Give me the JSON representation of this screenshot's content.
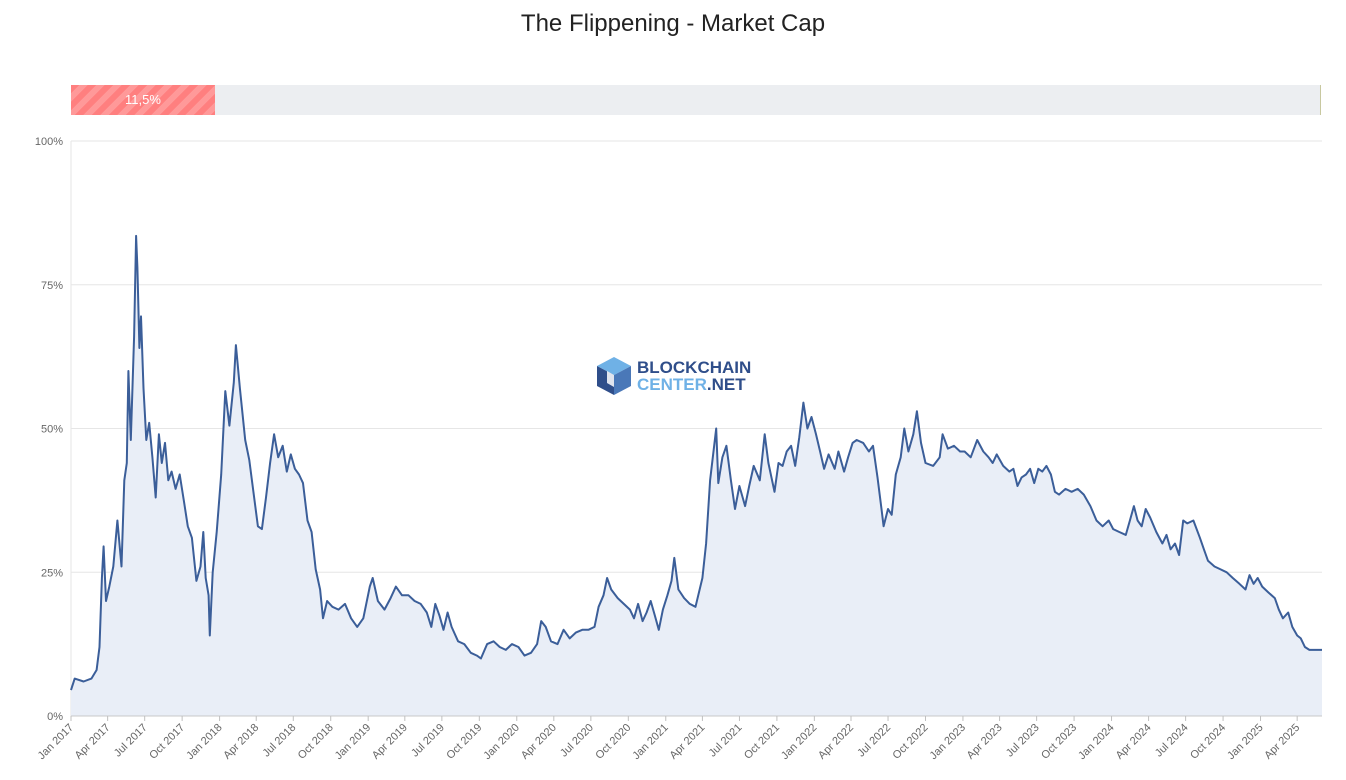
{
  "title": "The Flippening - Market Cap",
  "progress": {
    "value": 0.115,
    "label": "11,5%"
  },
  "watermark": {
    "line1": "BLOCKCHAIN",
    "line2a": "CENTER",
    "line2b": ".NET"
  },
  "colors": {
    "line": "#3b5e99",
    "area": "#e9eef7",
    "grid": "#e6e6e6",
    "bar": "#ff7f7f",
    "track": "#eceef1",
    "wm_dark": "#2f4e8a",
    "wm_light": "#6fb1e6"
  },
  "chart_data": {
    "type": "area",
    "title": "The Flippening - Market Cap",
    "xlabel": "",
    "ylabel": "",
    "ylim": [
      0,
      100
    ],
    "xlim": [
      "2017-01-01",
      "2025-06-01"
    ],
    "grid": true,
    "yticks": [
      "0%",
      "25%",
      "50%",
      "75%",
      "100%"
    ],
    "xticks": [
      "Jan 2017",
      "Apr 2017",
      "Jul 2017",
      "Oct 2017",
      "Jan 2018",
      "Apr 2018",
      "Jul 2018",
      "Oct 2018",
      "Jan 2019",
      "Apr 2019",
      "Jul 2019",
      "Oct 2019",
      "Jan 2020",
      "Apr 2020",
      "Jul 2020",
      "Oct 2020",
      "Jan 2021",
      "Apr 2021",
      "Jul 2021",
      "Oct 2021",
      "Jan 2022",
      "Apr 2022",
      "Jul 2022",
      "Oct 2022",
      "Jan 2023",
      "Apr 2023",
      "Jul 2023",
      "Oct 2023",
      "Jan 2024",
      "Apr 2024",
      "Jul 2024",
      "Oct 2024",
      "Jan 2025",
      "Apr 2025"
    ],
    "series": [
      {
        "points": [
          [
            "2017-01-01",
            4.5
          ],
          [
            "2017-01-10",
            6.5
          ],
          [
            "2017-02-01",
            6.0
          ],
          [
            "2017-02-20",
            6.5
          ],
          [
            "2017-03-05",
            8.0
          ],
          [
            "2017-03-12",
            12.0
          ],
          [
            "2017-03-18",
            24.0
          ],
          [
            "2017-03-22",
            29.5
          ],
          [
            "2017-03-28",
            20.0
          ],
          [
            "2017-04-05",
            22.5
          ],
          [
            "2017-04-15",
            26.0
          ],
          [
            "2017-04-25",
            34.0
          ],
          [
            "2017-05-05",
            26.0
          ],
          [
            "2017-05-12",
            41.0
          ],
          [
            "2017-05-18",
            44.0
          ],
          [
            "2017-05-22",
            60.0
          ],
          [
            "2017-05-28",
            48.0
          ],
          [
            "2017-06-05",
            66.0
          ],
          [
            "2017-06-10",
            83.5
          ],
          [
            "2017-06-13",
            78.0
          ],
          [
            "2017-06-18",
            64.0
          ],
          [
            "2017-06-22",
            69.5
          ],
          [
            "2017-06-28",
            57.0
          ],
          [
            "2017-07-05",
            48.0
          ],
          [
            "2017-07-12",
            51.0
          ],
          [
            "2017-07-20",
            45.0
          ],
          [
            "2017-07-28",
            38.0
          ],
          [
            "2017-08-05",
            49.0
          ],
          [
            "2017-08-12",
            44.0
          ],
          [
            "2017-08-20",
            47.5
          ],
          [
            "2017-08-28",
            41.0
          ],
          [
            "2017-09-05",
            42.5
          ],
          [
            "2017-09-15",
            39.5
          ],
          [
            "2017-09-25",
            42.0
          ],
          [
            "2017-10-05",
            37.5
          ],
          [
            "2017-10-15",
            33.0
          ],
          [
            "2017-10-25",
            31.0
          ],
          [
            "2017-11-05",
            23.5
          ],
          [
            "2017-11-15",
            26.0
          ],
          [
            "2017-11-22",
            32.0
          ],
          [
            "2017-11-28",
            24.0
          ],
          [
            "2017-12-05",
            21.0
          ],
          [
            "2017-12-08",
            14.0
          ],
          [
            "2017-12-15",
            25.0
          ],
          [
            "2017-12-25",
            32.0
          ],
          [
            "2018-01-05",
            42.0
          ],
          [
            "2018-01-15",
            56.5
          ],
          [
            "2018-01-25",
            50.5
          ],
          [
            "2018-02-05",
            58.0
          ],
          [
            "2018-02-10",
            64.5
          ],
          [
            "2018-02-20",
            57.0
          ],
          [
            "2018-03-05",
            48.0
          ],
          [
            "2018-03-15",
            44.5
          ],
          [
            "2018-03-25",
            39.0
          ],
          [
            "2018-04-05",
            33.0
          ],
          [
            "2018-04-15",
            32.5
          ],
          [
            "2018-04-25",
            38.0
          ],
          [
            "2018-05-05",
            44.0
          ],
          [
            "2018-05-15",
            49.0
          ],
          [
            "2018-05-25",
            45.0
          ],
          [
            "2018-06-05",
            47.0
          ],
          [
            "2018-06-15",
            42.5
          ],
          [
            "2018-06-25",
            45.5
          ],
          [
            "2018-07-05",
            43.0
          ],
          [
            "2018-07-15",
            42.0
          ],
          [
            "2018-07-25",
            40.5
          ],
          [
            "2018-08-05",
            34.0
          ],
          [
            "2018-08-15",
            32.0
          ],
          [
            "2018-08-25",
            25.5
          ],
          [
            "2018-09-05",
            22.0
          ],
          [
            "2018-09-12",
            17.0
          ],
          [
            "2018-09-22",
            20.0
          ],
          [
            "2018-10-05",
            19.0
          ],
          [
            "2018-10-20",
            18.5
          ],
          [
            "2018-11-05",
            19.5
          ],
          [
            "2018-11-20",
            17.0
          ],
          [
            "2018-12-05",
            15.5
          ],
          [
            "2018-12-20",
            17.0
          ],
          [
            "2019-01-05",
            22.5
          ],
          [
            "2019-01-12",
            24.0
          ],
          [
            "2019-01-25",
            20.0
          ],
          [
            "2019-02-10",
            18.5
          ],
          [
            "2019-02-25",
            20.5
          ],
          [
            "2019-03-10",
            22.5
          ],
          [
            "2019-03-25",
            21.0
          ],
          [
            "2019-04-10",
            21.0
          ],
          [
            "2019-04-25",
            20.0
          ],
          [
            "2019-05-10",
            19.5
          ],
          [
            "2019-05-25",
            18.0
          ],
          [
            "2019-06-05",
            15.5
          ],
          [
            "2019-06-15",
            19.5
          ],
          [
            "2019-06-25",
            17.5
          ],
          [
            "2019-07-05",
            15.0
          ],
          [
            "2019-07-15",
            18.0
          ],
          [
            "2019-07-25",
            15.5
          ],
          [
            "2019-08-10",
            13.0
          ],
          [
            "2019-08-25",
            12.5
          ],
          [
            "2019-09-10",
            11.0
          ],
          [
            "2019-09-25",
            10.5
          ],
          [
            "2019-10-05",
            10.0
          ],
          [
            "2019-10-20",
            12.5
          ],
          [
            "2019-11-05",
            13.0
          ],
          [
            "2019-11-20",
            12.0
          ],
          [
            "2019-12-05",
            11.5
          ],
          [
            "2019-12-20",
            12.5
          ],
          [
            "2020-01-05",
            12.0
          ],
          [
            "2020-01-20",
            10.5
          ],
          [
            "2020-02-05",
            11.0
          ],
          [
            "2020-02-20",
            12.5
          ],
          [
            "2020-03-01",
            16.5
          ],
          [
            "2020-03-12",
            15.5
          ],
          [
            "2020-03-25",
            13.0
          ],
          [
            "2020-04-10",
            12.5
          ],
          [
            "2020-04-25",
            15.0
          ],
          [
            "2020-05-10",
            13.5
          ],
          [
            "2020-05-25",
            14.5
          ],
          [
            "2020-06-10",
            15.0
          ],
          [
            "2020-06-25",
            15.0
          ],
          [
            "2020-07-10",
            15.5
          ],
          [
            "2020-07-20",
            19.0
          ],
          [
            "2020-08-01",
            21.0
          ],
          [
            "2020-08-10",
            24.0
          ],
          [
            "2020-08-20",
            22.0
          ],
          [
            "2020-09-05",
            20.5
          ],
          [
            "2020-09-20",
            19.5
          ],
          [
            "2020-10-05",
            18.5
          ],
          [
            "2020-10-15",
            17.0
          ],
          [
            "2020-10-25",
            19.5
          ],
          [
            "2020-11-05",
            16.5
          ],
          [
            "2020-11-15",
            18.0
          ],
          [
            "2020-11-25",
            20.0
          ],
          [
            "2020-12-05",
            17.5
          ],
          [
            "2020-12-15",
            15.0
          ],
          [
            "2020-12-25",
            18.5
          ],
          [
            "2021-01-05",
            21.0
          ],
          [
            "2021-01-15",
            23.5
          ],
          [
            "2021-01-22",
            27.5
          ],
          [
            "2021-02-01",
            22.0
          ],
          [
            "2021-02-15",
            20.5
          ],
          [
            "2021-03-01",
            19.5
          ],
          [
            "2021-03-15",
            19.0
          ],
          [
            "2021-04-01",
            24.0
          ],
          [
            "2021-04-10",
            30.0
          ],
          [
            "2021-04-20",
            41.0
          ],
          [
            "2021-05-05",
            50.0
          ],
          [
            "2021-05-10",
            40.5
          ],
          [
            "2021-05-20",
            45.0
          ],
          [
            "2021-05-30",
            47.0
          ],
          [
            "2021-06-10",
            41.0
          ],
          [
            "2021-06-20",
            36.0
          ],
          [
            "2021-07-01",
            40.0
          ],
          [
            "2021-07-15",
            36.5
          ],
          [
            "2021-07-25",
            40.0
          ],
          [
            "2021-08-05",
            43.5
          ],
          [
            "2021-08-20",
            41.0
          ],
          [
            "2021-09-01",
            49.0
          ],
          [
            "2021-09-10",
            44.0
          ],
          [
            "2021-09-25",
            39.0
          ],
          [
            "2021-10-05",
            44.0
          ],
          [
            "2021-10-15",
            43.5
          ],
          [
            "2021-10-25",
            46.0
          ],
          [
            "2021-11-05",
            47.0
          ],
          [
            "2021-11-15",
            43.5
          ],
          [
            "2021-11-25",
            48.5
          ],
          [
            "2021-12-05",
            54.5
          ],
          [
            "2021-12-15",
            50.0
          ],
          [
            "2021-12-25",
            52.0
          ],
          [
            "2022-01-05",
            49.0
          ],
          [
            "2022-01-15",
            46.0
          ],
          [
            "2022-01-25",
            43.0
          ],
          [
            "2022-02-05",
            45.5
          ],
          [
            "2022-02-20",
            43.0
          ],
          [
            "2022-03-01",
            46.0
          ],
          [
            "2022-03-15",
            42.5
          ],
          [
            "2022-03-25",
            45.0
          ],
          [
            "2022-04-05",
            47.5
          ],
          [
            "2022-04-15",
            48.0
          ],
          [
            "2022-05-01",
            47.5
          ],
          [
            "2022-05-15",
            46.0
          ],
          [
            "2022-05-25",
            47.0
          ],
          [
            "2022-06-05",
            41.5
          ],
          [
            "2022-06-15",
            36.0
          ],
          [
            "2022-06-20",
            33.0
          ],
          [
            "2022-07-01",
            36.0
          ],
          [
            "2022-07-10",
            35.0
          ],
          [
            "2022-07-20",
            42.0
          ],
          [
            "2022-08-01",
            45.0
          ],
          [
            "2022-08-10",
            50.0
          ],
          [
            "2022-08-20",
            46.0
          ],
          [
            "2022-09-01",
            49.0
          ],
          [
            "2022-09-10",
            53.0
          ],
          [
            "2022-09-20",
            47.5
          ],
          [
            "2022-10-01",
            44.0
          ],
          [
            "2022-10-20",
            43.5
          ],
          [
            "2022-11-05",
            45.0
          ],
          [
            "2022-11-12",
            49.0
          ],
          [
            "2022-11-25",
            46.5
          ],
          [
            "2022-12-10",
            47.0
          ],
          [
            "2022-12-25",
            46.0
          ],
          [
            "2023-01-05",
            46.0
          ],
          [
            "2023-01-20",
            45.0
          ],
          [
            "2023-02-05",
            48.0
          ],
          [
            "2023-02-20",
            46.0
          ],
          [
            "2023-03-05",
            45.0
          ],
          [
            "2023-03-15",
            44.0
          ],
          [
            "2023-03-25",
            45.5
          ],
          [
            "2023-04-10",
            43.5
          ],
          [
            "2023-04-25",
            42.5
          ],
          [
            "2023-05-05",
            43.0
          ],
          [
            "2023-05-15",
            40.0
          ],
          [
            "2023-05-25",
            41.5
          ],
          [
            "2023-06-05",
            42.0
          ],
          [
            "2023-06-15",
            43.0
          ],
          [
            "2023-06-25",
            40.5
          ],
          [
            "2023-07-05",
            43.0
          ],
          [
            "2023-07-15",
            42.5
          ],
          [
            "2023-07-25",
            43.5
          ],
          [
            "2023-08-05",
            42.0
          ],
          [
            "2023-08-15",
            39.0
          ],
          [
            "2023-08-25",
            38.5
          ],
          [
            "2023-09-10",
            39.5
          ],
          [
            "2023-09-25",
            39.0
          ],
          [
            "2023-10-10",
            39.5
          ],
          [
            "2023-10-25",
            38.5
          ],
          [
            "2023-11-10",
            36.5
          ],
          [
            "2023-11-25",
            34.0
          ],
          [
            "2023-12-10",
            33.0
          ],
          [
            "2023-12-25",
            34.0
          ],
          [
            "2024-01-05",
            32.5
          ],
          [
            "2024-01-20",
            32.0
          ],
          [
            "2024-02-05",
            31.5
          ],
          [
            "2024-02-15",
            34.0
          ],
          [
            "2024-02-25",
            36.5
          ],
          [
            "2024-03-05",
            34.0
          ],
          [
            "2024-03-15",
            33.0
          ],
          [
            "2024-03-25",
            36.0
          ],
          [
            "2024-04-05",
            34.5
          ],
          [
            "2024-04-20",
            32.0
          ],
          [
            "2024-05-05",
            30.0
          ],
          [
            "2024-05-15",
            31.5
          ],
          [
            "2024-05-25",
            29.0
          ],
          [
            "2024-06-05",
            30.0
          ],
          [
            "2024-06-15",
            28.0
          ],
          [
            "2024-06-25",
            34.0
          ],
          [
            "2024-07-05",
            33.5
          ],
          [
            "2024-07-20",
            34.0
          ],
          [
            "2024-08-05",
            31.0
          ],
          [
            "2024-08-15",
            29.0
          ],
          [
            "2024-08-25",
            27.0
          ],
          [
            "2024-09-10",
            26.0
          ],
          [
            "2024-09-25",
            25.5
          ],
          [
            "2024-10-10",
            25.0
          ],
          [
            "2024-10-25",
            24.0
          ],
          [
            "2024-11-10",
            23.0
          ],
          [
            "2024-11-25",
            22.0
          ],
          [
            "2024-12-05",
            24.5
          ],
          [
            "2024-12-15",
            23.0
          ],
          [
            "2024-12-25",
            24.0
          ],
          [
            "2025-01-05",
            22.5
          ],
          [
            "2025-01-20",
            21.5
          ],
          [
            "2025-02-05",
            20.5
          ],
          [
            "2025-02-15",
            18.5
          ],
          [
            "2025-02-25",
            17.0
          ],
          [
            "2025-03-10",
            18.0
          ],
          [
            "2025-03-20",
            15.5
          ],
          [
            "2025-04-01",
            14.0
          ],
          [
            "2025-04-10",
            13.5
          ],
          [
            "2025-04-20",
            12.0
          ],
          [
            "2025-05-01",
            11.5
          ],
          [
            "2025-05-15",
            11.5
          ],
          [
            "2025-06-01",
            11.5
          ]
        ]
      }
    ]
  }
}
